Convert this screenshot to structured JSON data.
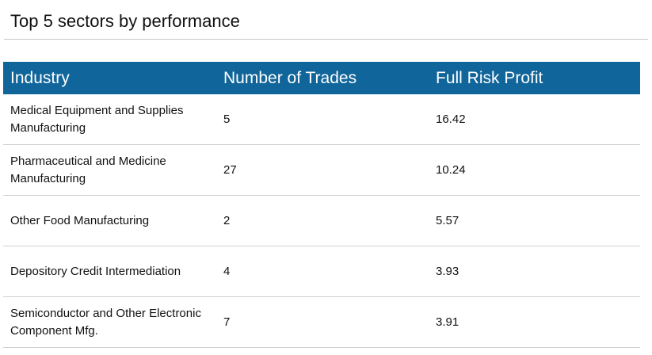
{
  "header": {
    "title": "Top 5 sectors by performance"
  },
  "table": {
    "columns": [
      "Industry",
      "Number of Trades",
      "Full Risk Profit"
    ],
    "rows": [
      [
        "Medical Equipment and Supplies Manufacturing",
        5,
        16.42
      ],
      [
        "Pharmaceutical and Medicine Manufacturing",
        27,
        10.24
      ],
      [
        "Other Food Manufacturing",
        2,
        5.57
      ],
      [
        "Depository Credit Intermediation",
        4,
        3.93
      ],
      [
        "Semiconductor and Other Electronic Component Mfg.",
        7,
        3.91
      ]
    ]
  }
}
